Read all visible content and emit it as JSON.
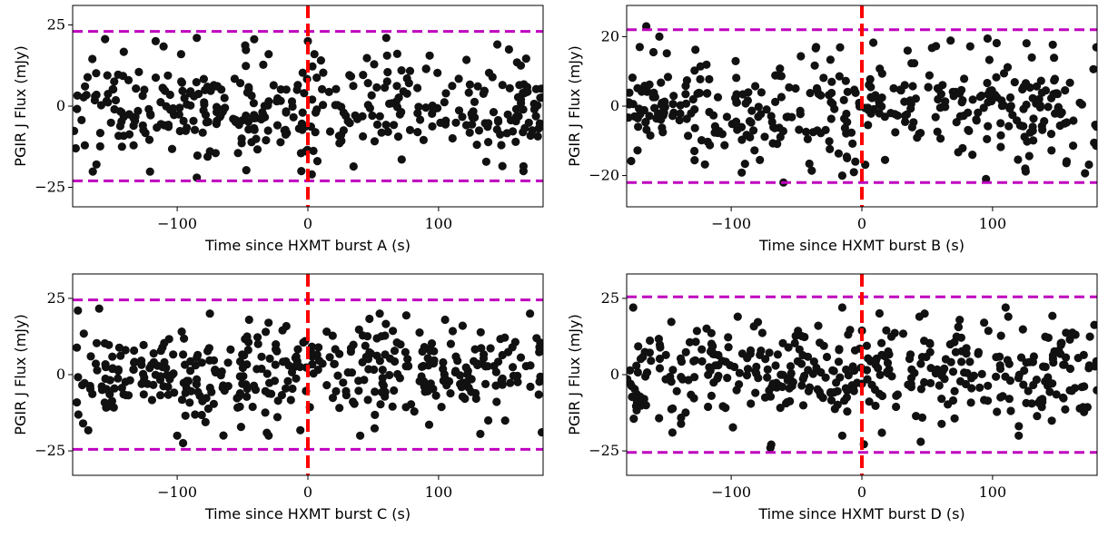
{
  "colors": {
    "points": "#111111",
    "threshold_line": "#bf00bf",
    "burst_line": "#ff0000"
  },
  "chart_data": [
    {
      "type": "scatter",
      "xlabel": "Time since HXMT burst A (s)",
      "ylabel": "PGIR J Flux (mJy)",
      "xlim": [
        -180,
        180
      ],
      "ylim": [
        -31,
        31
      ],
      "xticks": [
        {
          "v": -100,
          "label": "−100"
        },
        {
          "v": 0,
          "label": "0"
        },
        {
          "v": 100,
          "label": "100"
        }
      ],
      "yticks": [
        {
          "v": -25,
          "label": "−25"
        },
        {
          "v": 0,
          "label": "0"
        },
        {
          "v": 25,
          "label": "25"
        }
      ],
      "thresholds": [
        23,
        -23
      ],
      "burst_time": 0,
      "grid": false,
      "seed": 11,
      "n_points": 380,
      "sigma": 8,
      "highlights": [
        [
          -85,
          21
        ],
        [
          -85,
          -22
        ],
        [
          -30,
          16
        ],
        [
          -5,
          -20
        ],
        [
          0,
          20
        ],
        [
          5,
          16
        ],
        [
          3,
          -21
        ],
        [
          60,
          21
        ],
        [
          145,
          19
        ],
        [
          148,
          -12
        ],
        [
          165,
          -20
        ],
        [
          -97,
          16
        ]
      ]
    },
    {
      "type": "scatter",
      "xlabel": "Time since HXMT burst B (s)",
      "ylabel": "PGIR J Flux (mJy)",
      "xlim": [
        -180,
        180
      ],
      "ylim": [
        -29,
        29
      ],
      "xticks": [
        {
          "v": -100,
          "label": "−100"
        },
        {
          "v": 0,
          "label": "0"
        },
        {
          "v": 100,
          "label": "100"
        }
      ],
      "yticks": [
        {
          "v": -20,
          "label": "−20"
        },
        {
          "v": 0,
          "label": "0"
        },
        {
          "v": 20,
          "label": "20"
        }
      ],
      "thresholds": [
        22,
        -22
      ],
      "burst_time": 0,
      "grid": false,
      "seed": 23,
      "n_points": 380,
      "sigma": 7.5,
      "highlights": [
        [
          -165,
          23
        ],
        [
          -155,
          20
        ],
        [
          -170,
          17
        ],
        [
          -60,
          -22
        ],
        [
          -15,
          -20
        ],
        [
          -5,
          -16
        ],
        [
          -35,
          17
        ],
        [
          35,
          16
        ],
        [
          95,
          -21
        ],
        [
          130,
          14
        ],
        [
          125,
          -18
        ]
      ]
    },
    {
      "type": "scatter",
      "xlabel": "Time since HXMT burst C (s)",
      "ylabel": "PGIR J Flux (mJy)",
      "xlim": [
        -180,
        180
      ],
      "ylim": [
        -33,
        33
      ],
      "xticks": [
        {
          "v": -100,
          "label": "−100"
        },
        {
          "v": 0,
          "label": "0"
        },
        {
          "v": 100,
          "label": "100"
        }
      ],
      "yticks": [
        {
          "v": -25,
          "label": "−25"
        },
        {
          "v": 0,
          "label": "0"
        },
        {
          "v": 25,
          "label": "25"
        }
      ],
      "thresholds": [
        24.5,
        -24.5
      ],
      "burst_time": 0,
      "grid": false,
      "seed": 37,
      "n_points": 400,
      "sigma": 8,
      "highlights": [
        [
          -176,
          21
        ],
        [
          -172,
          -16
        ],
        [
          -100,
          -20
        ],
        [
          -75,
          20
        ],
        [
          -30,
          -20
        ],
        [
          -45,
          18
        ],
        [
          40,
          -20
        ],
        [
          55,
          20
        ],
        [
          105,
          18
        ],
        [
          170,
          20
        ],
        [
          138,
          -15
        ]
      ]
    },
    {
      "type": "scatter",
      "xlabel": "Time since HXMT burst D (s)",
      "ylabel": "PGIR J Flux (mJy)",
      "xlim": [
        -180,
        180
      ],
      "ylim": [
        -33,
        33
      ],
      "xticks": [
        {
          "v": -100,
          "label": "−100"
        },
        {
          "v": 0,
          "label": "0"
        },
        {
          "v": 100,
          "label": "100"
        }
      ],
      "yticks": [
        {
          "v": -25,
          "label": "−25"
        },
        {
          "v": 0,
          "label": "0"
        },
        {
          "v": 25,
          "label": "25"
        }
      ],
      "thresholds": [
        25.5,
        -25.5
      ],
      "burst_time": 0,
      "grid": false,
      "seed": 51,
      "n_points": 400,
      "sigma": 8,
      "highlights": [
        [
          -175,
          22
        ],
        [
          -70,
          -24
        ],
        [
          -15,
          22
        ],
        [
          45,
          -22
        ],
        [
          48,
          20
        ],
        [
          110,
          22
        ],
        [
          112,
          19
        ],
        [
          120,
          -20
        ],
        [
          -145,
          -19
        ],
        [
          -95,
          19
        ]
      ]
    }
  ]
}
